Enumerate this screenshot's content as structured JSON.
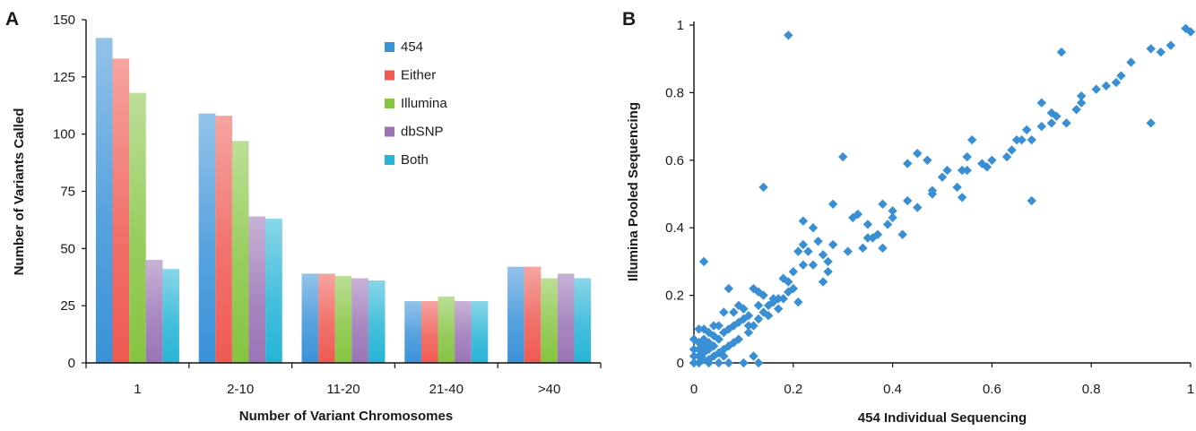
{
  "panels": {
    "a": {
      "letter": "A"
    },
    "b": {
      "letter": "B"
    }
  },
  "chart_data": [
    {
      "type": "bar",
      "panel": "A",
      "categories": [
        "1",
        "2-10",
        "11-20",
        "21-40",
        ">40"
      ],
      "series": [
        {
          "name": "454",
          "color": "#3a92d8",
          "values": [
            142,
            109,
            39,
            27,
            42
          ]
        },
        {
          "name": "Either",
          "color": "#ef5a52",
          "values": [
            133,
            108,
            39,
            27,
            42
          ]
        },
        {
          "name": "Illumina",
          "color": "#86c441",
          "values": [
            118,
            97,
            38,
            29,
            37
          ]
        },
        {
          "name": "dbSNP",
          "color": "#9a74b6",
          "values": [
            45,
            64,
            37,
            27,
            39
          ]
        },
        {
          "name": "Both",
          "color": "#27b4d6",
          "values": [
            41,
            63,
            36,
            27,
            37
          ]
        }
      ],
      "xlabel": "Number of Variant Chromosomes",
      "ylabel": "Number of Variants Called",
      "ylim": [
        0,
        150
      ],
      "yticks": [
        0,
        25,
        50,
        75,
        100,
        125,
        150
      ],
      "legend": "top-right",
      "grid": false
    },
    {
      "type": "scatter",
      "panel": "B",
      "color": "#3a8fd4",
      "xlabel": "454 Individual Sequencing",
      "ylabel": "Illumina Pooled Sequencing",
      "xlim": [
        0,
        1
      ],
      "ylim": [
        0,
        1
      ],
      "xticks": [
        0,
        0.2,
        0.4,
        0.6,
        0.8,
        1
      ],
      "yticks": [
        0,
        0.2,
        0.4,
        0.6,
        0.8,
        1
      ],
      "xtick_labels": [
        "0",
        "0.2",
        "0.4",
        "0.6",
        "0.8",
        "1"
      ],
      "ytick_labels": [
        "0",
        "0.2",
        "0.4",
        "0.6",
        "0.8",
        "1"
      ],
      "grid": false,
      "points": [
        [
          0.19,
          0.97
        ],
        [
          0.99,
          0.99
        ],
        [
          1.0,
          0.98
        ],
        [
          0.96,
          0.94
        ],
        [
          0.94,
          0.92
        ],
        [
          0.92,
          0.93
        ],
        [
          0.74,
          0.92
        ],
        [
          0.92,
          0.71
        ],
        [
          0.88,
          0.89
        ],
        [
          0.86,
          0.85
        ],
        [
          0.85,
          0.83
        ],
        [
          0.81,
          0.81
        ],
        [
          0.78,
          0.79
        ],
        [
          0.78,
          0.77
        ],
        [
          0.77,
          0.75
        ],
        [
          0.75,
          0.71
        ],
        [
          0.73,
          0.73
        ],
        [
          0.72,
          0.71
        ],
        [
          0.7,
          0.77
        ],
        [
          0.7,
          0.7
        ],
        [
          0.68,
          0.48
        ],
        [
          0.68,
          0.66
        ],
        [
          0.67,
          0.69
        ],
        [
          0.66,
          0.66
        ],
        [
          0.65,
          0.66
        ],
        [
          0.63,
          0.61
        ],
        [
          0.6,
          0.6
        ],
        [
          0.58,
          0.59
        ],
        [
          0.56,
          0.66
        ],
        [
          0.55,
          0.61
        ],
        [
          0.55,
          0.57
        ],
        [
          0.54,
          0.57
        ],
        [
          0.54,
          0.49
        ],
        [
          0.51,
          0.57
        ],
        [
          0.5,
          0.55
        ],
        [
          0.48,
          0.51
        ],
        [
          0.48,
          0.5
        ],
        [
          0.47,
          0.6
        ],
        [
          0.45,
          0.62
        ],
        [
          0.43,
          0.59
        ],
        [
          0.43,
          0.48
        ],
        [
          0.42,
          0.38
        ],
        [
          0.4,
          0.45
        ],
        [
          0.4,
          0.43
        ],
        [
          0.39,
          0.41
        ],
        [
          0.38,
          0.47
        ],
        [
          0.38,
          0.34
        ],
        [
          0.37,
          0.38
        ],
        [
          0.36,
          0.37
        ],
        [
          0.35,
          0.41
        ],
        [
          0.35,
          0.37
        ],
        [
          0.34,
          0.34
        ],
        [
          0.33,
          0.44
        ],
        [
          0.32,
          0.43
        ],
        [
          0.3,
          0.61
        ],
        [
          0.28,
          0.47
        ],
        [
          0.28,
          0.35
        ],
        [
          0.27,
          0.27
        ],
        [
          0.26,
          0.32
        ],
        [
          0.25,
          0.36
        ],
        [
          0.24,
          0.4
        ],
        [
          0.24,
          0.29
        ],
        [
          0.23,
          0.33
        ],
        [
          0.22,
          0.42
        ],
        [
          0.22,
          0.35
        ],
        [
          0.22,
          0.29
        ],
        [
          0.21,
          0.33
        ],
        [
          0.2,
          0.27
        ],
        [
          0.2,
          0.22
        ],
        [
          0.19,
          0.21
        ],
        [
          0.18,
          0.25
        ],
        [
          0.18,
          0.19
        ],
        [
          0.17,
          0.19
        ],
        [
          0.16,
          0.18
        ],
        [
          0.14,
          0.52
        ],
        [
          0.15,
          0.17
        ],
        [
          0.14,
          0.2
        ],
        [
          0.14,
          0.15
        ],
        [
          0.13,
          0.21
        ],
        [
          0.13,
          0.17
        ],
        [
          0.13,
          0.13
        ],
        [
          0.12,
          0.22
        ],
        [
          0.12,
          0.11
        ],
        [
          0.12,
          0.02
        ],
        [
          0.13,
          0.0
        ],
        [
          0.11,
          0.14
        ],
        [
          0.11,
          0.11
        ],
        [
          0.1,
          0.16
        ],
        [
          0.1,
          0.13
        ],
        [
          0.09,
          0.17
        ],
        [
          0.09,
          0.12
        ],
        [
          0.08,
          0.15
        ],
        [
          0.08,
          0.11
        ],
        [
          0.08,
          0.06
        ],
        [
          0.07,
          0.22
        ],
        [
          0.07,
          0.1
        ],
        [
          0.07,
          0.05
        ],
        [
          0.07,
          0.0
        ],
        [
          0.06,
          0.15
        ],
        [
          0.06,
          0.09
        ],
        [
          0.06,
          0.04
        ],
        [
          0.05,
          0.11
        ],
        [
          0.05,
          0.07
        ],
        [
          0.05,
          0.03
        ],
        [
          0.05,
          0.0
        ],
        [
          0.04,
          0.11
        ],
        [
          0.04,
          0.08
        ],
        [
          0.04,
          0.05
        ],
        [
          0.04,
          0.02
        ],
        [
          0.03,
          0.09
        ],
        [
          0.03,
          0.06
        ],
        [
          0.03,
          0.04
        ],
        [
          0.03,
          0.01
        ],
        [
          0.03,
          0.0
        ],
        [
          0.02,
          0.3
        ],
        [
          0.02,
          0.1
        ],
        [
          0.02,
          0.07
        ],
        [
          0.02,
          0.05
        ],
        [
          0.02,
          0.03
        ],
        [
          0.02,
          0.01
        ],
        [
          0.01,
          0.1
        ],
        [
          0.01,
          0.06
        ],
        [
          0.01,
          0.04
        ],
        [
          0.01,
          0.02
        ],
        [
          0.0,
          0.0
        ],
        [
          0.0,
          0.04
        ],
        [
          0.0,
          0.02
        ],
        [
          0.01,
          0.0
        ],
        [
          0.0,
          0.07
        ],
        [
          0.1,
          0.0
        ],
        [
          0.16,
          0.19
        ],
        [
          0.21,
          0.18
        ],
        [
          0.27,
          0.3
        ],
        [
          0.31,
          0.33
        ],
        [
          0.45,
          0.46
        ],
        [
          0.53,
          0.52
        ],
        [
          0.59,
          0.58
        ],
        [
          0.64,
          0.63
        ],
        [
          0.72,
          0.74
        ],
        [
          0.83,
          0.82
        ],
        [
          0.26,
          0.24
        ],
        [
          0.15,
          0.14
        ],
        [
          0.11,
          0.09
        ],
        [
          0.06,
          0.02
        ],
        [
          0.09,
          0.07
        ],
        [
          0.17,
          0.16
        ],
        [
          0.19,
          0.24
        ]
      ]
    }
  ]
}
